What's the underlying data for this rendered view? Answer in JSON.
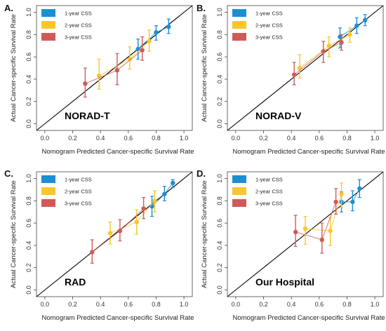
{
  "colors": {
    "css1": "#1b8fd1",
    "css2": "#f7c72b",
    "css3": "#d05a58"
  },
  "chart_data": [
    {
      "type": "scatter",
      "panel_letter": "A.",
      "name": "NORAD-T",
      "xlabel": "Nomogram Predicted Cancer-specific Survival Rate",
      "ylabel": "Actual Cancer-specific Survival Rate",
      "xlim": [
        0,
        1
      ],
      "ylim": [
        0,
        1
      ],
      "ticks": [
        "0.0",
        "0.2",
        "0.4",
        "0.6",
        "0.8",
        "1.0"
      ],
      "diagonal": true,
      "grid": false,
      "legend_position": "top-left",
      "series": [
        {
          "name": "1-year CSS",
          "color_key": "css1",
          "connect": true,
          "points": [
            {
              "x": 0.67,
              "y": 0.67,
              "lo": 0.58,
              "hi": 0.76
            },
            {
              "x": 0.8,
              "y": 0.82,
              "lo": 0.75,
              "hi": 0.88
            },
            {
              "x": 0.89,
              "y": 0.87,
              "lo": 0.81,
              "hi": 0.94
            }
          ]
        },
        {
          "name": "2-year CSS",
          "color_key": "css2",
          "connect": true,
          "points": [
            {
              "x": 0.39,
              "y": 0.43,
              "lo": 0.31,
              "hi": 0.58
            },
            {
              "x": 0.61,
              "y": 0.58,
              "lo": 0.49,
              "hi": 0.69
            },
            {
              "x": 0.75,
              "y": 0.74,
              "lo": 0.65,
              "hi": 0.84
            }
          ]
        },
        {
          "name": "3-year CSS",
          "color_key": "css3",
          "connect": true,
          "points": [
            {
              "x": 0.29,
              "y": 0.36,
              "lo": 0.24,
              "hi": 0.5
            },
            {
              "x": 0.52,
              "y": 0.48,
              "lo": 0.35,
              "hi": 0.63
            },
            {
              "x": 0.7,
              "y": 0.66,
              "lo": 0.57,
              "hi": 0.78
            }
          ]
        }
      ]
    },
    {
      "type": "scatter",
      "panel_letter": "B.",
      "name": "NORAD-V",
      "xlabel": "Nomogram Predicted Cancer-specific Survival Rate",
      "ylabel": "Actual Cancer-specific Survival Rate",
      "xlim": [
        0,
        1
      ],
      "ylim": [
        0,
        1
      ],
      "ticks": [
        "0.0",
        "0.2",
        "0.4",
        "0.6",
        "0.8",
        "1.0"
      ],
      "diagonal": true,
      "grid": false,
      "legend_position": "top-left",
      "series": [
        {
          "name": "1-year CSS",
          "color_key": "css1",
          "connect": true,
          "points": [
            {
              "x": 0.75,
              "y": 0.78,
              "lo": 0.68,
              "hi": 0.86
            },
            {
              "x": 0.87,
              "y": 0.88,
              "lo": 0.81,
              "hi": 0.95
            },
            {
              "x": 0.93,
              "y": 0.93,
              "lo": 0.88,
              "hi": 0.98
            }
          ]
        },
        {
          "name": "2-year CSS",
          "color_key": "css2",
          "connect": true,
          "points": [
            {
              "x": 0.46,
              "y": 0.5,
              "lo": 0.41,
              "hi": 0.62
            },
            {
              "x": 0.67,
              "y": 0.7,
              "lo": 0.6,
              "hi": 0.78
            },
            {
              "x": 0.82,
              "y": 0.8,
              "lo": 0.73,
              "hi": 0.86
            }
          ]
        },
        {
          "name": "3-year CSS",
          "color_key": "css3",
          "connect": true,
          "points": [
            {
              "x": 0.42,
              "y": 0.44,
              "lo": 0.35,
              "hi": 0.55
            },
            {
              "x": 0.63,
              "y": 0.65,
              "lo": 0.55,
              "hi": 0.74
            },
            {
              "x": 0.76,
              "y": 0.73,
              "lo": 0.66,
              "hi": 0.8
            }
          ]
        }
      ]
    },
    {
      "type": "scatter",
      "panel_letter": "C.",
      "name": "RAD",
      "xlabel": "Nomogram Predicted Cancer-specific Survival Rate",
      "ylabel": "Actual Cancer-specific Survival Rate",
      "xlim": [
        0,
        1
      ],
      "ylim": [
        0,
        1
      ],
      "ticks": [
        "0.0",
        "0.2",
        "0.4",
        "0.6",
        "0.8",
        "1.0"
      ],
      "diagonal": true,
      "grid": false,
      "legend_position": "top-left",
      "series": [
        {
          "name": "1-year CSS",
          "color_key": "css1",
          "connect": true,
          "points": [
            {
              "x": 0.77,
              "y": 0.75,
              "lo": 0.66,
              "hi": 0.84
            },
            {
              "x": 0.86,
              "y": 0.86,
              "lo": 0.8,
              "hi": 0.93
            },
            {
              "x": 0.92,
              "y": 0.96,
              "lo": 0.92,
              "hi": 0.99
            }
          ]
        },
        {
          "name": "2-year CSS",
          "color_key": "css2",
          "connect": true,
          "points": [
            {
              "x": 0.47,
              "y": 0.51,
              "lo": 0.41,
              "hi": 0.61
            },
            {
              "x": 0.66,
              "y": 0.61,
              "lo": 0.5,
              "hi": 0.72
            },
            {
              "x": 0.79,
              "y": 0.8,
              "lo": 0.7,
              "hi": 0.89
            }
          ]
        },
        {
          "name": "3-year CSS",
          "color_key": "css3",
          "connect": true,
          "points": [
            {
              "x": 0.34,
              "y": 0.34,
              "lo": 0.24,
              "hi": 0.45
            },
            {
              "x": 0.54,
              "y": 0.53,
              "lo": 0.44,
              "hi": 0.63
            },
            {
              "x": 0.71,
              "y": 0.73,
              "lo": 0.64,
              "hi": 0.83
            }
          ]
        }
      ]
    },
    {
      "type": "scatter",
      "panel_letter": "D.",
      "name": "Our Hospital",
      "xlabel": "Nomogram Predicted Cancer-specific Survival Rate",
      "ylabel": "Actual Cancer-specific Survival Rate",
      "xlim": [
        0,
        1
      ],
      "ylim": [
        0,
        1
      ],
      "ticks": [
        "0.0",
        "0.2",
        "0.4",
        "0.6",
        "0.8",
        "1.0"
      ],
      "diagonal": true,
      "grid": false,
      "legend_position": "top-left",
      "series": [
        {
          "name": "1-year CSS",
          "color_key": "css1",
          "connect": true,
          "points": [
            {
              "x": 0.76,
              "y": 0.79,
              "lo": 0.7,
              "hi": 0.88
            },
            {
              "x": 0.84,
              "y": 0.79,
              "lo": 0.71,
              "hi": 0.89
            },
            {
              "x": 0.89,
              "y": 0.91,
              "lo": 0.83,
              "hi": 0.99
            }
          ]
        },
        {
          "name": "2-year CSS",
          "color_key": "css2",
          "connect": true,
          "points": [
            {
              "x": 0.5,
              "y": 0.55,
              "lo": 0.41,
              "hi": 0.66
            },
            {
              "x": 0.68,
              "y": 0.53,
              "lo": 0.4,
              "hi": 0.65
            },
            {
              "x": 0.76,
              "y": 0.86,
              "lo": 0.74,
              "hi": 0.96
            }
          ]
        },
        {
          "name": "3-year CSS",
          "color_key": "css3",
          "connect": true,
          "points": [
            {
              "x": 0.43,
              "y": 0.52,
              "lo": 0.39,
              "hi": 0.67
            },
            {
              "x": 0.62,
              "y": 0.45,
              "lo": 0.33,
              "hi": 0.6
            },
            {
              "x": 0.72,
              "y": 0.79,
              "lo": 0.68,
              "hi": 0.91
            }
          ]
        }
      ]
    }
  ]
}
